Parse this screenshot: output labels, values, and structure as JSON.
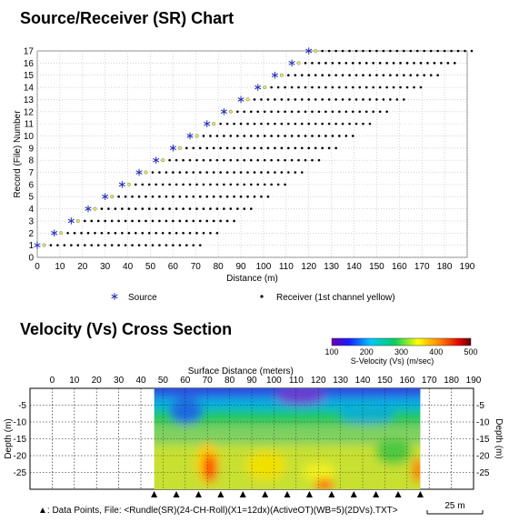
{
  "titles": {
    "sr_chart": "Source/Receiver (SR) Chart",
    "cross_section": "Velocity (Vs) Cross Section"
  },
  "chart_data": [
    {
      "type": "scatter",
      "title": "Source/Receiver (SR) Chart",
      "xlabel": "Distance (m)",
      "ylabel": "Record (File) Number",
      "xlim": [
        0,
        190
      ],
      "ylim": [
        0,
        17
      ],
      "x_ticks": [
        0,
        10,
        20,
        30,
        40,
        50,
        60,
        70,
        80,
        90,
        100,
        110,
        120,
        130,
        140,
        150,
        160,
        170,
        180,
        190
      ],
      "y_ticks": [
        0,
        1,
        2,
        3,
        4,
        5,
        6,
        7,
        8,
        9,
        10,
        11,
        12,
        13,
        14,
        15,
        16,
        17
      ],
      "grid": true,
      "series": [
        {
          "name": "Source",
          "marker": "asterisk",
          "color": "#1c2ab8",
          "x": [
            0,
            7.5,
            15,
            22.5,
            30,
            37.5,
            45,
            52.5,
            60,
            67.5,
            75,
            82.5,
            90,
            97.5,
            105,
            112.5,
            120
          ],
          "y": [
            1,
            2,
            3,
            4,
            5,
            6,
            7,
            8,
            9,
            10,
            11,
            12,
            13,
            14,
            15,
            16,
            17
          ]
        },
        {
          "name": "Receiver (1st channel yellow)",
          "marker": "dot",
          "color": "#000000",
          "first_channel_color": "#e8e85a",
          "channel_count": 24,
          "channel_spacing": 3,
          "records": [
            1,
            2,
            3,
            4,
            5,
            6,
            7,
            8,
            9,
            10,
            11,
            12,
            13,
            14,
            15,
            16,
            17
          ],
          "first_x": [
            3,
            10.5,
            18,
            25.5,
            33,
            40.5,
            48,
            55.5,
            63,
            70.5,
            78,
            85.5,
            93,
            100.5,
            108,
            115.5,
            123
          ]
        }
      ],
      "legend": [
        "Source",
        "Receiver (1st channel yellow)"
      ],
      "legend_position": "bottom"
    },
    {
      "type": "heatmap",
      "title": "Velocity (Vs) Cross Section",
      "xlabel": "Surface Distance (meters)",
      "ylabel_left": "Depth (m)",
      "ylabel_right": "Depth (m)",
      "xlim": [
        -10,
        190
      ],
      "x_ticks": [
        0,
        10,
        20,
        30,
        40,
        50,
        60,
        70,
        80,
        90,
        100,
        110,
        120,
        130,
        140,
        150,
        160,
        170,
        180,
        190
      ],
      "ylim": [
        0,
        30
      ],
      "y_ticks": [
        -5,
        -10,
        -15,
        -20,
        -25
      ],
      "colorbar": {
        "label": "S-Velocity (Vs) (m/sec)",
        "ticks": [
          100,
          200,
          300,
          400,
          500
        ],
        "range": [
          100,
          500
        ]
      },
      "section_x_range": [
        46,
        166
      ],
      "data_point_x": [
        46,
        56,
        66,
        76,
        86,
        96,
        106,
        116,
        126,
        136,
        146,
        156,
        166
      ],
      "scale_bar": "25 m"
    }
  ],
  "footer": {
    "marker": "▲",
    "text": ": Data Points,  File: <Rundle(SR)(24-CH-Roll)(X1=12dx)(ActiveOT)(WB=5)(2DVs).TXT>"
  }
}
